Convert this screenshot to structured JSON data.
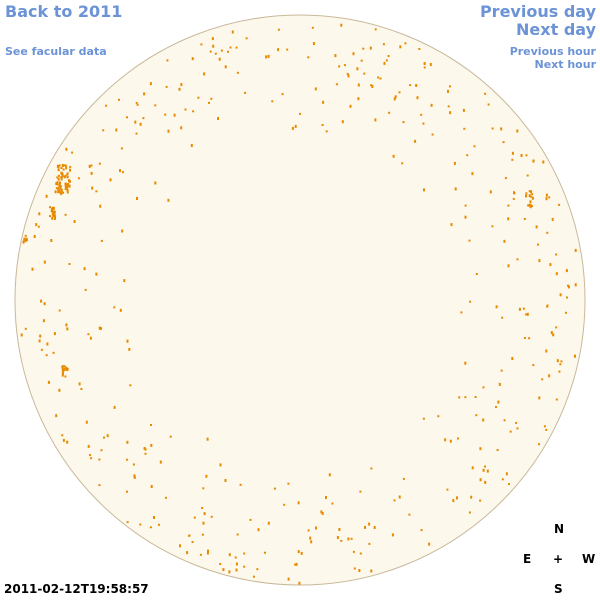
{
  "nav": {
    "back": "Back to 2011",
    "facular": "See facular data",
    "previous_day": "Previous day",
    "next_day": "Next day",
    "previous_hour": "Previous hour",
    "next_hour": "Next hour"
  },
  "timestamp": "2011-02-12T19:58:57",
  "compass": {
    "north": "N",
    "east": "E",
    "center": "+",
    "west": "W",
    "south": "S"
  }
}
